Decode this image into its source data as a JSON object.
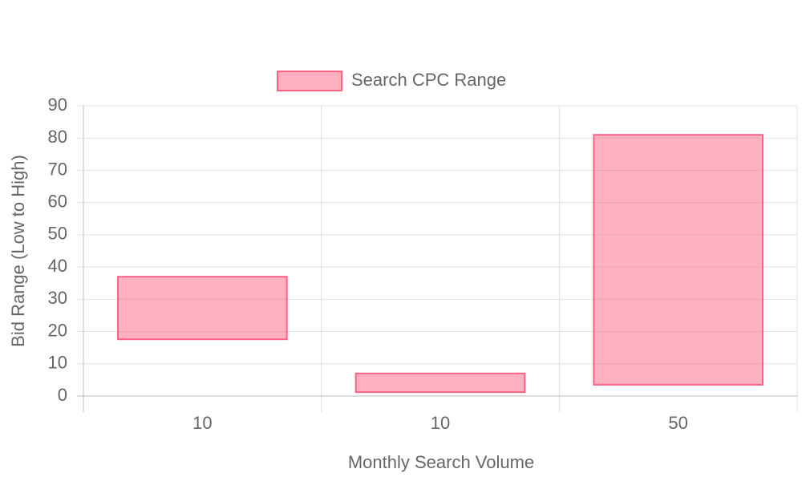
{
  "chart_data": {
    "type": "floating-bar",
    "categories": [
      "10",
      "10",
      "50"
    ],
    "series": [
      {
        "name": "Search CPC Range",
        "color": "#ff6384",
        "values": [
          [
            17.6,
            37
          ],
          [
            1.2,
            7
          ],
          [
            3.5,
            81
          ]
        ]
      }
    ],
    "x_label": "Monthly Search Volume",
    "y_label": "Bid Range (Low to High)",
    "ylim": [
      0,
      90
    ],
    "yticks": [
      0,
      10,
      20,
      30,
      40,
      50,
      60,
      70,
      80,
      90
    ],
    "grid": true,
    "legend": "top"
  }
}
